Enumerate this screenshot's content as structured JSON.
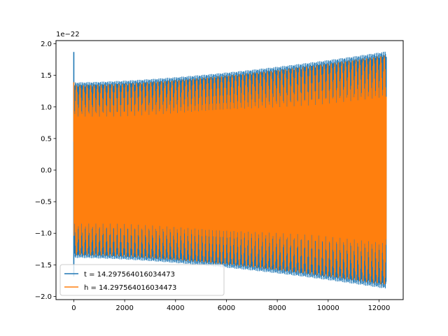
{
  "chart_data": {
    "type": "line",
    "offset_text": "1e−22",
    "xlim": [
      -700,
      12950
    ],
    "ylim": [
      -2.05,
      2.05
    ],
    "x_ticks": [
      0,
      2000,
      4000,
      6000,
      8000,
      10000,
      12000
    ],
    "x_tick_labels": [
      "0",
      "2000",
      "4000",
      "6000",
      "8000",
      "10000",
      "12000"
    ],
    "y_ticks": [
      -2.0,
      -1.5,
      -1.0,
      -0.5,
      0.0,
      0.5,
      1.0,
      1.5,
      2.0
    ],
    "y_tick_labels": [
      "−2.0",
      "−1.5",
      "−1.0",
      "−0.5",
      "0.0",
      "0.5",
      "1.0",
      "1.5",
      "2.0"
    ],
    "legend": {
      "location": "lower-left"
    },
    "series": [
      {
        "name": "t = 14.297564016034473",
        "color": "#1f77b4",
        "x_range": [
          0,
          12288
        ],
        "envelope_start": 1.39,
        "envelope_end": 1.88,
        "initial_spike": 1.87
      },
      {
        "name": "h = 14.297564016034473",
        "color": "#ff7f0e",
        "x_range": [
          0,
          12288
        ],
        "envelope_start": 1.39,
        "envelope_end": 1.88
      }
    ]
  }
}
